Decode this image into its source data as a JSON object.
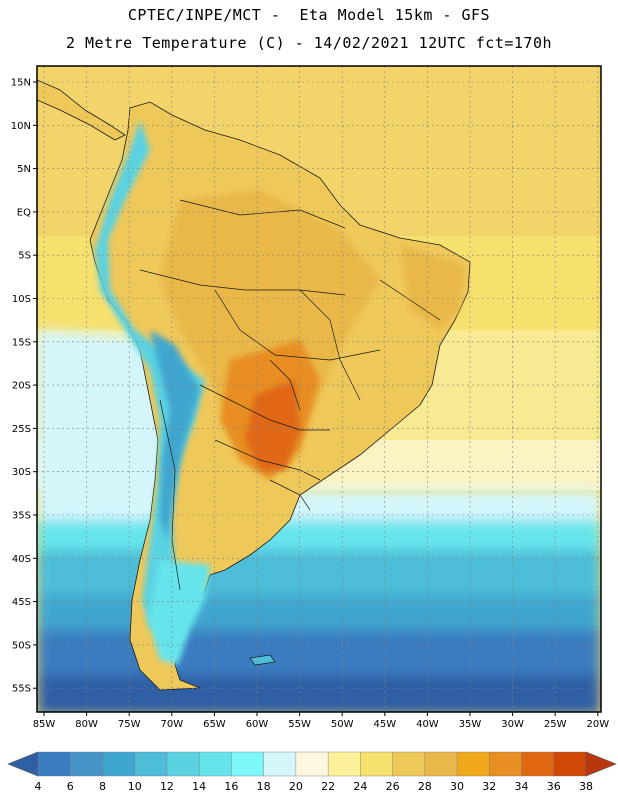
{
  "header": {
    "line1": "CPTEC/INPE/MCT -  Eta Model 15km - GFS",
    "line2": "2 Metre Temperature (C) - 14/02/2021 12UTC fct=170h"
  },
  "map": {
    "region": "South America",
    "lat_labels": [
      "15N",
      "10N",
      "5N",
      "EQ",
      "5S",
      "10S",
      "15S",
      "20S",
      "25S",
      "30S",
      "35S",
      "40S",
      "45S",
      "50S",
      "55S"
    ],
    "lon_labels": [
      "85W",
      "80W",
      "75W",
      "70W",
      "65W",
      "60W",
      "55W",
      "50W",
      "45W",
      "40W",
      "35W",
      "30W",
      "25W",
      "20W"
    ]
  },
  "legend": {
    "values": [
      "4",
      "6",
      "8",
      "10",
      "12",
      "14",
      "16",
      "18",
      "20",
      "22",
      "24",
      "26",
      "28",
      "30",
      "32",
      "34",
      "36",
      "38"
    ],
    "colors": [
      "#2f5fa4",
      "#3a7cc0",
      "#4694c8",
      "#3fa6cf",
      "#4dbdd9",
      "#5ad2e2",
      "#66e4ec",
      "#7df7f7",
      "#d4f6fb",
      "#fdf7e0",
      "#fcf09a",
      "#f6e06e",
      "#efc85a",
      "#e9b84a",
      "#efa81c",
      "#e88e22",
      "#e06812",
      "#cf4808",
      "#b8360a"
    ]
  }
}
